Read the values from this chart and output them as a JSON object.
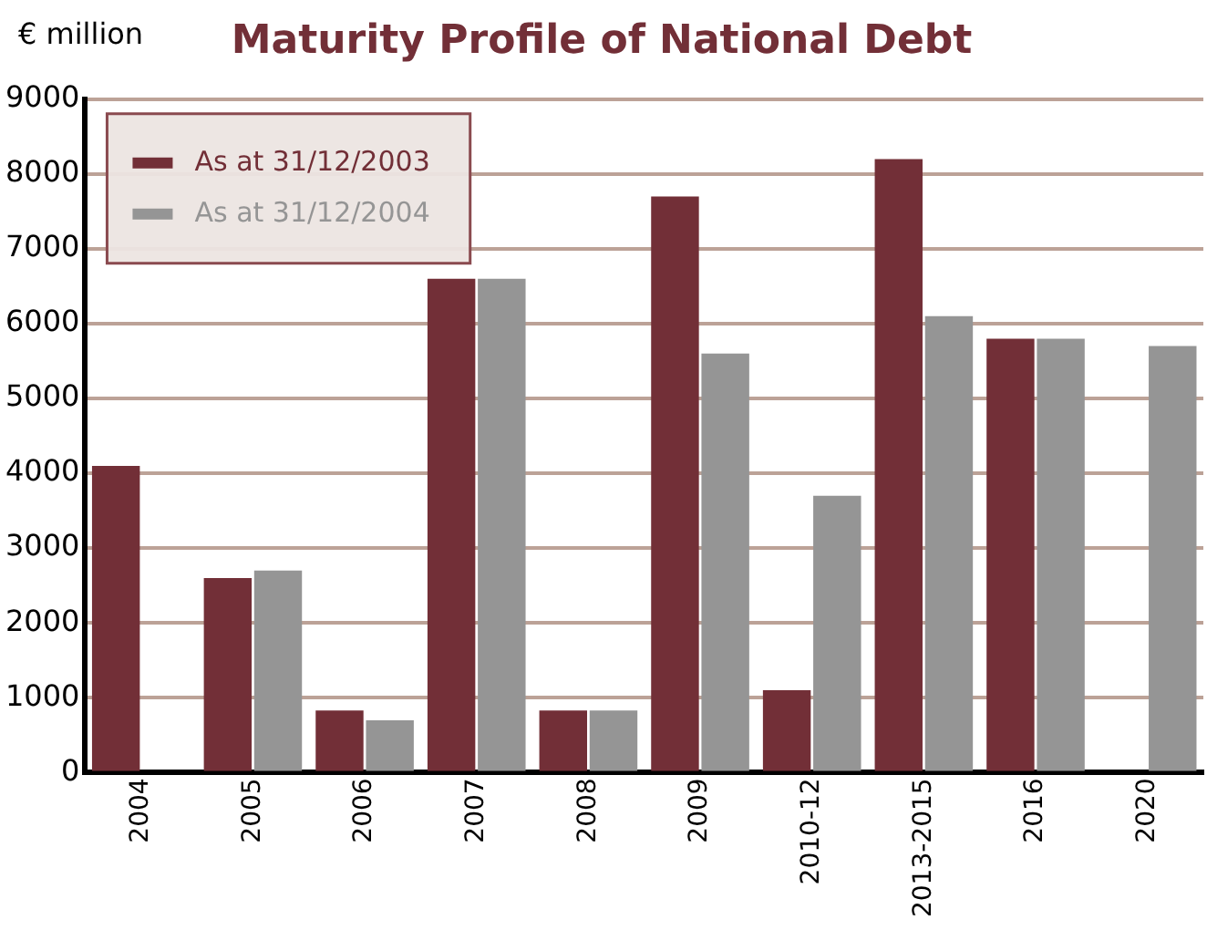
{
  "chart_data": {
    "type": "bar",
    "title": "Maturity Profile of National Debt",
    "ylabel": "€ million",
    "categories": [
      "2004",
      "2005",
      "2006",
      "2007",
      "2008",
      "2009",
      "2010-12",
      "2013-2015",
      "2016",
      "2020"
    ],
    "series": [
      {
        "name": "As at 31/12/2003",
        "color": "#722f37",
        "values": [
          4100,
          2600,
          830,
          6600,
          830,
          7700,
          1100,
          8200,
          5800,
          null
        ]
      },
      {
        "name": "As at 31/12/2004",
        "color": "#959595",
        "values": [
          null,
          2700,
          700,
          6600,
          830,
          5600,
          3700,
          6100,
          5800,
          5700
        ]
      }
    ],
    "ylim": [
      0,
      9000
    ],
    "yticks": [
      0,
      1000,
      2000,
      3000,
      4000,
      5000,
      6000,
      7000,
      8000,
      9000
    ],
    "grid": "y",
    "legend": "top left"
  }
}
